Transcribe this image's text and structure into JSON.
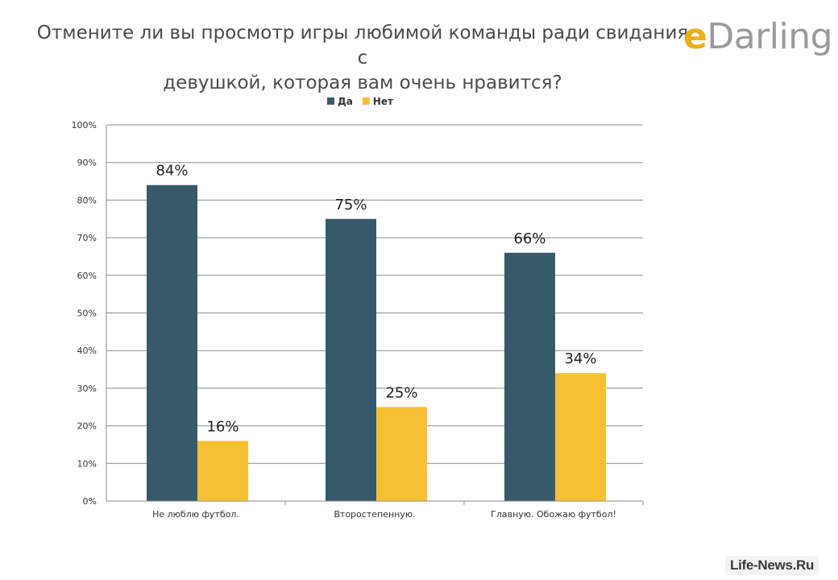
{
  "header": {
    "title_line1": "Отмените ли вы просмотр игры любимой команды ради свидания с",
    "title_line2": "девушкой, которая вам очень нравится?",
    "logo_e": "e",
    "logo_rest": "Darling"
  },
  "watermark": "Life-News.Ru",
  "chart_data": {
    "type": "bar",
    "title": "Отмените ли вы просмотр игры любимой команды ради свидания с девушкой, которая вам очень нравится?",
    "categories": [
      "Не люблю футбол.",
      "Второстепенную.",
      "Главную. Обожаю футбол!"
    ],
    "series": [
      {
        "name": "Да",
        "values": [
          84,
          75,
          66
        ],
        "color": "#375a6b"
      },
      {
        "name": "Нет",
        "values": [
          16,
          25,
          34
        ],
        "color": "#f5c133"
      }
    ],
    "value_suffix": "%",
    "ylim": [
      0,
      100
    ],
    "yticks": [
      0,
      10,
      20,
      30,
      40,
      50,
      60,
      70,
      80,
      90,
      100
    ],
    "ytick_suffix": "%",
    "grid": true,
    "legend": "top",
    "xlabel": "",
    "ylabel": ""
  }
}
